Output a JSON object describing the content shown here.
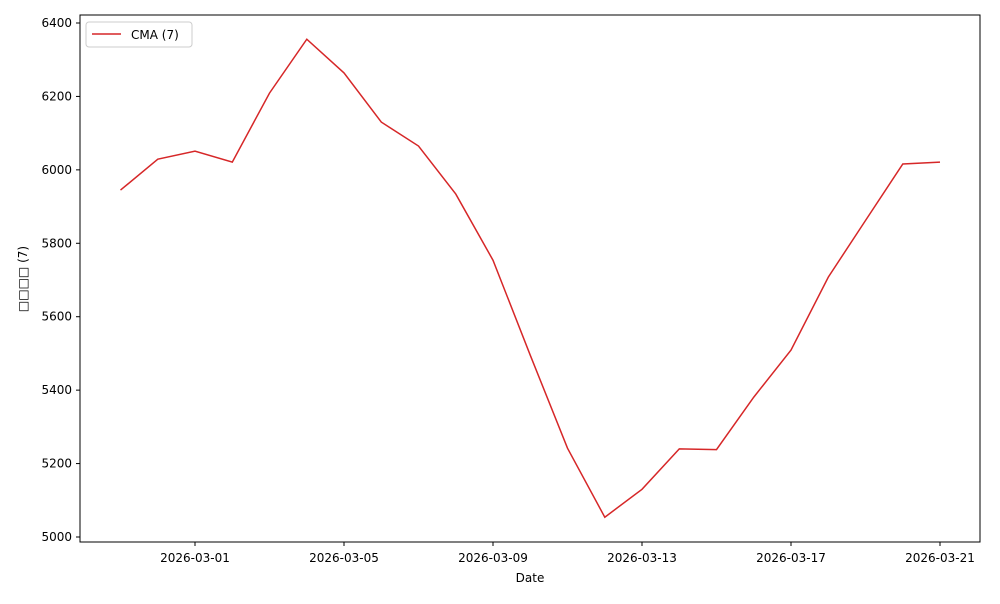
{
  "chart_data": {
    "type": "line",
    "title": "",
    "xlabel": "Date",
    "ylabel": "□□□□ (7)",
    "ylim": [
      4985,
      6420
    ],
    "xlim": [
      "2026-02-26",
      "2026-03-22"
    ],
    "grid": false,
    "legend_position": "top-left",
    "x_ticks": [
      "2026-03-01",
      "2026-03-05",
      "2026-03-09",
      "2026-03-13",
      "2026-03-17",
      "2026-03-21"
    ],
    "y_ticks": [
      5000,
      5200,
      5400,
      5600,
      5800,
      6000,
      6200,
      6400
    ],
    "series": [
      {
        "name": "CMA (7)",
        "color": "#d62728",
        "x": [
          "2026-02-27",
          "2026-02-28",
          "2026-03-01",
          "2026-03-02",
          "2026-03-03",
          "2026-03-04",
          "2026-03-05",
          "2026-03-06",
          "2026-03-07",
          "2026-03-08",
          "2026-03-09",
          "2026-03-10",
          "2026-03-11",
          "2026-03-12",
          "2026-03-13",
          "2026-03-14",
          "2026-03-15",
          "2026-03-16",
          "2026-03-17",
          "2026-03-18",
          "2026-03-19",
          "2026-03-20",
          "2026-03-21"
        ],
        "values": [
          5945,
          6029,
          6051,
          6021,
          6209,
          6356,
          6264,
          6130,
          6065,
          5934,
          5754,
          5495,
          5242,
          5054,
          5130,
          5240,
          5238,
          5381,
          5509,
          5708,
          5862,
          6016,
          6021
        ]
      }
    ]
  }
}
